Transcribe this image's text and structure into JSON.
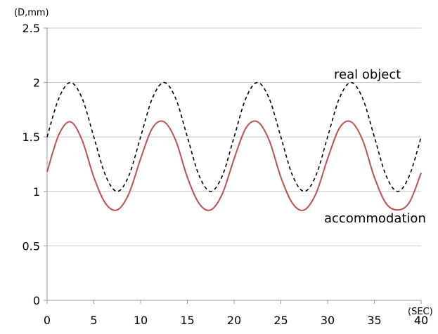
{
  "chart_data": {
    "type": "line",
    "y_unit_label": "(D,mm)",
    "x_unit_label": "(SEC)",
    "xlim": [
      0,
      40
    ],
    "ylim": [
      0,
      2.5
    ],
    "x_ticks": [
      0,
      5,
      10,
      15,
      20,
      25,
      30,
      35,
      40
    ],
    "y_ticks": [
      0,
      0.5,
      1,
      1.5,
      2,
      2.5
    ],
    "y_tick_labels": [
      "0",
      "0.5",
      "1",
      "1.5",
      "2",
      "2.5"
    ],
    "x_tick_labels": [
      "0",
      "5",
      "10",
      "15",
      "20",
      "25",
      "30",
      "35",
      "40"
    ],
    "grid": "horizontal",
    "series": [
      {
        "name": "real object",
        "style": "dashed",
        "color": "#000000",
        "x": [
          0,
          1.25,
          2.5,
          3.75,
          5,
          6.25,
          7.5,
          8.75,
          10,
          11.25,
          12.5,
          13.75,
          15,
          16.25,
          17.5,
          18.75,
          20,
          21.25,
          22.5,
          23.75,
          25,
          26.25,
          27.5,
          28.75,
          30,
          31.25,
          32.5,
          33.75,
          35,
          36.25,
          37.5,
          38.75,
          40
        ],
        "y": [
          1.5,
          1.854,
          2.0,
          1.854,
          1.5,
          1.146,
          1.0,
          1.146,
          1.5,
          1.854,
          2.0,
          1.854,
          1.5,
          1.146,
          1.0,
          1.146,
          1.5,
          1.854,
          2.0,
          1.854,
          1.5,
          1.146,
          1.0,
          1.146,
          1.5,
          1.854,
          2.0,
          1.854,
          1.5,
          1.146,
          1.0,
          1.146,
          1.5
        ]
      },
      {
        "name": "accommodation",
        "style": "solid",
        "color": "#c0504d",
        "x": [
          0,
          1.25,
          2.5,
          3.75,
          5,
          6.25,
          7.5,
          8.75,
          10,
          11.25,
          12.5,
          13.75,
          15,
          16.25,
          17.5,
          18.75,
          20,
          21.25,
          22.5,
          23.75,
          25,
          26.25,
          27.5,
          28.75,
          30,
          31.25,
          32.5,
          33.75,
          35,
          36.25,
          37.5,
          38.75,
          40
        ],
        "y": [
          1.18,
          1.52,
          1.64,
          1.47,
          1.13,
          0.89,
          0.83,
          0.98,
          1.3,
          1.58,
          1.64,
          1.47,
          1.13,
          0.89,
          0.83,
          0.98,
          1.3,
          1.58,
          1.64,
          1.47,
          1.13,
          0.89,
          0.83,
          0.98,
          1.3,
          1.58,
          1.64,
          1.47,
          1.13,
          0.89,
          0.83,
          0.9,
          1.17
        ]
      }
    ],
    "annotations": [
      "real object",
      "accommodation"
    ]
  }
}
